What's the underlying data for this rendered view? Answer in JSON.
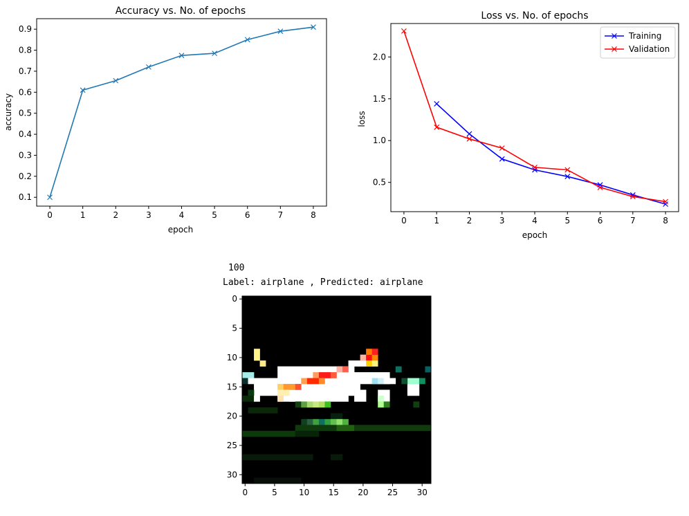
{
  "chart_data": [
    {
      "type": "line",
      "title": "Accuracy vs. No. of epochs",
      "xlabel": "epoch",
      "ylabel": "accuracy",
      "x": [
        0,
        1,
        2,
        3,
        4,
        5,
        6,
        7,
        8
      ],
      "xticks": [
        "0",
        "1",
        "2",
        "3",
        "4",
        "5",
        "6",
        "7",
        "8"
      ],
      "yticks": [
        "0.1",
        "0.2",
        "0.3",
        "0.4",
        "0.5",
        "0.6",
        "0.7",
        "0.8",
        "0.9"
      ],
      "xlim": [
        -0.4,
        8.4
      ],
      "ylim": [
        0.058,
        0.95
      ],
      "series": [
        {
          "name": "accuracy",
          "color": "#1f77b4",
          "marker": "x",
          "values": [
            0.1,
            0.61,
            0.655,
            0.72,
            0.775,
            0.785,
            0.85,
            0.89,
            0.91
          ]
        }
      ]
    },
    {
      "type": "line",
      "title": "Loss vs. No. of epochs",
      "xlabel": "epoch",
      "ylabel": "loss",
      "x": [
        0,
        1,
        2,
        3,
        4,
        5,
        6,
        7,
        8
      ],
      "xticks": [
        "0",
        "1",
        "2",
        "3",
        "4",
        "5",
        "6",
        "7",
        "8"
      ],
      "yticks": [
        "0.5",
        "1.0",
        "1.5",
        "2.0"
      ],
      "xlim": [
        -0.4,
        8.4
      ],
      "ylim": [
        0.15,
        2.4
      ],
      "legend": "top-right",
      "series": [
        {
          "name": "Training",
          "color": "#0000ff",
          "marker": "x",
          "x": [
            1,
            2,
            3,
            4,
            5,
            6,
            7,
            8
          ],
          "values": [
            1.44,
            1.08,
            0.78,
            0.65,
            0.57,
            0.47,
            0.35,
            0.24
          ]
        },
        {
          "name": "Validation",
          "color": "#ff0000",
          "marker": "x",
          "x": [
            0,
            1,
            2,
            3,
            4,
            5,
            6,
            7,
            8
          ],
          "values": [
            2.31,
            1.16,
            1.02,
            0.91,
            0.68,
            0.65,
            0.44,
            0.33,
            0.27
          ]
        }
      ]
    },
    {
      "type": "heatmap",
      "xticks": [
        "0",
        "5",
        "10",
        "15",
        "20",
        "25",
        "30"
      ],
      "yticks": [
        "0",
        "5",
        "10",
        "15",
        "20",
        "25",
        "30"
      ],
      "xlim": [
        -0.5,
        31.5
      ],
      "ylim": [
        -0.5,
        31.5
      ],
      "width": 32,
      "height": 32,
      "background": "#000000",
      "blocks": [
        {
          "x0": 0,
          "y0": 13,
          "x1": 2,
          "y1": 14,
          "c": "#a5ece8"
        },
        {
          "x0": 2,
          "y0": 14,
          "x1": 6,
          "y1": 17,
          "c": "#ffffff"
        },
        {
          "x0": 6,
          "y0": 12,
          "x1": 12,
          "y1": 18,
          "c": "#ffffff"
        },
        {
          "x0": 12,
          "y0": 12,
          "x1": 19,
          "y1": 16,
          "c": "#ffffff"
        },
        {
          "x0": 15,
          "y0": 13,
          "x1": 25,
          "y1": 14,
          "c": "#ffffff"
        },
        {
          "x0": 12,
          "y0": 14,
          "x1": 20,
          "y1": 16,
          "c": "#ffffff"
        },
        {
          "x0": 8,
          "y0": 16,
          "x1": 18,
          "y1": 18,
          "c": "#ffffff"
        },
        {
          "x0": 19,
          "y0": 14,
          "x1": 26,
          "y1": 15,
          "c": "#ffffff"
        },
        {
          "x0": 2,
          "y0": 9,
          "x1": 3,
          "y1": 11,
          "c": "#fff38a"
        },
        {
          "x0": 3,
          "y0": 11,
          "x1": 4,
          "y1": 12,
          "c": "#ffe98a"
        },
        {
          "x0": 18,
          "y0": 11,
          "x1": 22,
          "y1": 12,
          "c": "#ffffff"
        },
        {
          "x0": 20,
          "y0": 10,
          "x1": 21,
          "y1": 11,
          "c": "#ffb3a0"
        },
        {
          "x0": 21,
          "y0": 10,
          "x1": 22,
          "y1": 11,
          "c": "#ff1010"
        },
        {
          "x0": 22,
          "y0": 10,
          "x1": 23,
          "y1": 11,
          "c": "#ff8800"
        },
        {
          "x0": 21,
          "y0": 9,
          "x1": 22,
          "y1": 10,
          "c": "#ff7a00"
        },
        {
          "x0": 22,
          "y0": 9,
          "x1": 23,
          "y1": 10,
          "c": "#ff2020"
        },
        {
          "x0": 21,
          "y0": 11,
          "x1": 22,
          "y1": 12,
          "c": "#ffd000"
        },
        {
          "x0": 22,
          "y0": 11,
          "x1": 23,
          "y1": 12,
          "c": "#fff27a"
        },
        {
          "x0": 16,
          "y0": 12,
          "x1": 17,
          "y1": 13,
          "c": "#ffb0a0"
        },
        {
          "x0": 17,
          "y0": 12,
          "x1": 18,
          "y1": 13,
          "c": "#ff6050"
        },
        {
          "x0": 12,
          "y0": 13,
          "x1": 13,
          "y1": 14,
          "c": "#ff9a60"
        },
        {
          "x0": 13,
          "y0": 13,
          "x1": 15,
          "y1": 14,
          "c": "#ff1a1a"
        },
        {
          "x0": 15,
          "y0": 13,
          "x1": 16,
          "y1": 14,
          "c": "#ff5a3a"
        },
        {
          "x0": 10,
          "y0": 14,
          "x1": 11,
          "y1": 15,
          "c": "#ffa050"
        },
        {
          "x0": 11,
          "y0": 14,
          "x1": 13,
          "y1": 15,
          "c": "#ff2a00"
        },
        {
          "x0": 13,
          "y0": 14,
          "x1": 14,
          "y1": 15,
          "c": "#ff8a2a"
        },
        {
          "x0": 6,
          "y0": 15,
          "x1": 7,
          "y1": 16,
          "c": "#ffd060"
        },
        {
          "x0": 7,
          "y0": 15,
          "x1": 9,
          "y1": 16,
          "c": "#ff9a30"
        },
        {
          "x0": 9,
          "y0": 15,
          "x1": 10,
          "y1": 16,
          "c": "#ff5030"
        },
        {
          "x0": 6,
          "y0": 16,
          "x1": 8,
          "y1": 17,
          "c": "#fff0b0"
        },
        {
          "x0": 6,
          "y0": 17,
          "x1": 7,
          "y1": 18,
          "c": "#ffe0b0"
        },
        {
          "x0": 16,
          "y0": 16,
          "x1": 17,
          "y1": 17,
          "c": "#ffffff"
        },
        {
          "x0": 17,
          "y0": 15,
          "x1": 19,
          "y1": 16,
          "c": "#ffffff"
        },
        {
          "x0": 22,
          "y0": 14,
          "x1": 23,
          "y1": 15,
          "c": "#a0e0f0"
        },
        {
          "x0": 23,
          "y0": 14,
          "x1": 24,
          "y1": 15,
          "c": "#d0f0f8"
        },
        {
          "x0": 24,
          "y0": 14,
          "x1": 25,
          "y1": 15,
          "c": "#ffffff"
        },
        {
          "x0": 23,
          "y0": 16,
          "x1": 25,
          "y1": 18,
          "c": "#ffffff"
        },
        {
          "x0": 23,
          "y0": 17,
          "x1": 24,
          "y1": 18,
          "c": "#d0ffd0"
        },
        {
          "x0": 28,
          "y0": 15,
          "x1": 30,
          "y1": 17,
          "c": "#ffffff"
        },
        {
          "x0": 28,
          "y0": 14,
          "x1": 30,
          "y1": 15,
          "c": "#a0ffd0"
        },
        {
          "x0": 30,
          "y0": 14,
          "x1": 31,
          "y1": 15,
          "c": "#109060"
        },
        {
          "x0": 27,
          "y0": 14,
          "x1": 28,
          "y1": 15,
          "c": "#105030"
        },
        {
          "x0": 26,
          "y0": 12,
          "x1": 27,
          "y1": 13,
          "c": "#107060"
        },
        {
          "x0": 31,
          "y0": 12,
          "x1": 32,
          "y1": 13,
          "c": "#0a6060"
        },
        {
          "x0": 0,
          "y0": 14,
          "x1": 1,
          "y1": 15,
          "c": "#0a3030"
        },
        {
          "x0": 1,
          "y0": 14,
          "x1": 2,
          "y1": 15,
          "c": "#ffffff"
        },
        {
          "x0": 1,
          "y0": 16,
          "x1": 2,
          "y1": 17,
          "c": "#0a3a10"
        },
        {
          "x0": 0,
          "y0": 17,
          "x1": 2,
          "y1": 18,
          "c": "#0a2a08"
        },
        {
          "x0": 2,
          "y0": 17,
          "x1": 3,
          "y1": 18,
          "c": "#ffffff"
        },
        {
          "x0": 19,
          "y0": 16,
          "x1": 21,
          "y1": 18,
          "c": "#ffffff"
        },
        {
          "x0": 17,
          "y0": 16,
          "x1": 19,
          "y1": 17,
          "c": "#ffffff"
        },
        {
          "x0": 9,
          "y0": 18,
          "x1": 10,
          "y1": 19,
          "c": "#104010"
        },
        {
          "x0": 10,
          "y0": 18,
          "x1": 11,
          "y1": 19,
          "c": "#60a040"
        },
        {
          "x0": 11,
          "y0": 18,
          "x1": 12,
          "y1": 19,
          "c": "#a8d870"
        },
        {
          "x0": 12,
          "y0": 18,
          "x1": 13,
          "y1": 19,
          "c": "#c8e880"
        },
        {
          "x0": 13,
          "y0": 18,
          "x1": 14,
          "y1": 19,
          "c": "#b0e060"
        },
        {
          "x0": 14,
          "y0": 18,
          "x1": 15,
          "y1": 19,
          "c": "#40c020"
        },
        {
          "x0": 23,
          "y0": 18,
          "x1": 24,
          "y1": 19,
          "c": "#b0ff90"
        },
        {
          "x0": 24,
          "y0": 18,
          "x1": 25,
          "y1": 19,
          "c": "#308020"
        },
        {
          "x0": 29,
          "y0": 18,
          "x1": 30,
          "y1": 19,
          "c": "#104010"
        },
        {
          "x0": 1,
          "y0": 19,
          "x1": 6,
          "y1": 20,
          "c": "#0a2808"
        },
        {
          "x0": 15,
          "y0": 20,
          "x1": 17,
          "y1": 21,
          "c": "#082010"
        },
        {
          "x0": 10,
          "y0": 21,
          "x1": 11,
          "y1": 22,
          "c": "#104020"
        },
        {
          "x0": 11,
          "y0": 21,
          "x1": 12,
          "y1": 22,
          "c": "#2a6040"
        },
        {
          "x0": 12,
          "y0": 21,
          "x1": 13,
          "y1": 22,
          "c": "#40a040"
        },
        {
          "x0": 13,
          "y0": 21,
          "x1": 14,
          "y1": 22,
          "c": "#107060"
        },
        {
          "x0": 14,
          "y0": 21,
          "x1": 15,
          "y1": 22,
          "c": "#30a040"
        },
        {
          "x0": 15,
          "y0": 21,
          "x1": 16,
          "y1": 22,
          "c": "#60c050"
        },
        {
          "x0": 16,
          "y0": 21,
          "x1": 17,
          "y1": 22,
          "c": "#90e070"
        },
        {
          "x0": 17,
          "y0": 21,
          "x1": 18,
          "y1": 22,
          "c": "#50b040"
        },
        {
          "x0": 9,
          "y0": 22,
          "x1": 16,
          "y1": 23,
          "c": "#0e3a0e"
        },
        {
          "x0": 16,
          "y0": 22,
          "x1": 19,
          "y1": 23,
          "c": "#206010"
        },
        {
          "x0": 19,
          "y0": 22,
          "x1": 32,
          "y1": 23,
          "c": "#123a0e"
        },
        {
          "x0": 0,
          "y0": 23,
          "x1": 9,
          "y1": 24,
          "c": "#0c3a0a"
        },
        {
          "x0": 9,
          "y0": 23,
          "x1": 13,
          "y1": 24,
          "c": "#082408"
        },
        {
          "x0": 0,
          "y0": 27,
          "x1": 12,
          "y1": 28,
          "c": "#0a1a0a"
        },
        {
          "x0": 15,
          "y0": 27,
          "x1": 17,
          "y1": 28,
          "c": "#0a1a0a"
        },
        {
          "x0": 2,
          "y0": 31,
          "x1": 10,
          "y1": 32,
          "c": "#080e08"
        }
      ]
    }
  ],
  "annotations": {
    "index_text": "100",
    "caption_text": "Label: airplane , Predicted: airplane"
  }
}
